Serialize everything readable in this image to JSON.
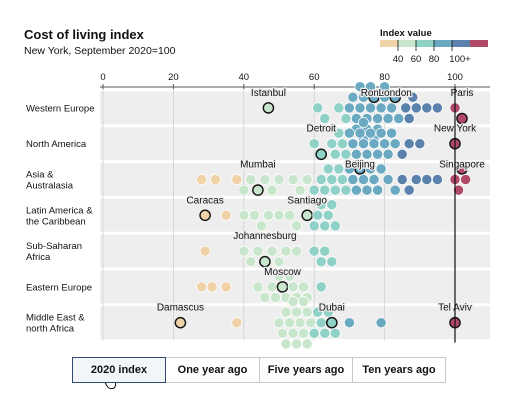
{
  "chart_data": {
    "type": "beeswarm",
    "title": "Cost of living index",
    "subtitle": "New York, September 2020=100",
    "xlim": [
      0,
      110
    ],
    "x_ticks": [
      0,
      20,
      40,
      60,
      80,
      100
    ],
    "reference_line": 100,
    "legend": {
      "title": "Index value",
      "ticks": [
        "40",
        "60",
        "80",
        "100+"
      ],
      "colors": [
        "#f0d2a8",
        "#c8e6cb",
        "#8fd0c7",
        "#6aa9c1",
        "#5a82ad",
        "#b04a68"
      ],
      "placement": "top-right"
    },
    "rows": [
      {
        "name": "Western Europe",
        "labels": [
          {
            "city": "Istanbul",
            "value": 47
          },
          {
            "city": "Rome",
            "value": 77
          },
          {
            "city": "London",
            "value": 83
          },
          {
            "city": "Paris",
            "value": 102
          }
        ],
        "points": [
          47,
          61,
          63,
          67,
          69,
          70,
          71,
          72,
          72,
          73,
          73,
          74,
          74,
          75,
          75,
          76,
          76,
          77,
          77,
          78,
          78,
          79,
          80,
          80,
          81,
          82,
          83,
          84,
          86,
          87,
          88,
          89,
          92,
          95,
          100,
          102
        ]
      },
      {
        "name": "North America",
        "labels": [
          {
            "city": "Detroit",
            "value": 62
          },
          {
            "city": "New York",
            "value": 100
          }
        ],
        "points": [
          60,
          62,
          65,
          66,
          67,
          68,
          69,
          70,
          71,
          72,
          72,
          73,
          74,
          74,
          75,
          76,
          77,
          78,
          79,
          80,
          81,
          82,
          83,
          85,
          87,
          90,
          100
        ]
      },
      {
        "name": "Asia & Australasia",
        "labels": [
          {
            "city": "Mumbai",
            "value": 44
          },
          {
            "city": "Beijing",
            "value": 73
          },
          {
            "city": "Singapore",
            "value": 102
          }
        ],
        "points": [
          28,
          32,
          38,
          40,
          42,
          44,
          46,
          48,
          50,
          54,
          56,
          58,
          60,
          62,
          63,
          64,
          65,
          66,
          67,
          68,
          69,
          70,
          71,
          72,
          73,
          74,
          75,
          76,
          77,
          78,
          79,
          81,
          83,
          85,
          87,
          89,
          92,
          95,
          100,
          101,
          102,
          103
        ]
      },
      {
        "name": "Latin America & the Caribbean",
        "labels": [
          {
            "city": "Caracas",
            "value": 29
          },
          {
            "city": "Santiago",
            "value": 58
          }
        ],
        "points": [
          29,
          35,
          40,
          43,
          45,
          47,
          50,
          53,
          55,
          58,
          60,
          61,
          62,
          63,
          64,
          65,
          66
        ]
      },
      {
        "name": "Sub-Saharan Africa",
        "labels": [
          {
            "city": "Johannesburg",
            "value": 46
          }
        ],
        "points": [
          29,
          40,
          42,
          44,
          46,
          48,
          50,
          52,
          55,
          60,
          62,
          63,
          65
        ]
      },
      {
        "name": "Eastern Europe",
        "labels": [
          {
            "city": "Moscow",
            "value": 51
          }
        ],
        "points": [
          28,
          31,
          35,
          44,
          46,
          48,
          49,
          50,
          51,
          52,
          53,
          54,
          55,
          57,
          58,
          62
        ]
      },
      {
        "name": "Middle East & north Africa",
        "labels": [
          {
            "city": "Damascus",
            "value": 22
          },
          {
            "city": "Dubai",
            "value": 65
          },
          {
            "city": "Tel Aviv",
            "value": 100
          }
        ],
        "points": [
          22,
          38,
          50,
          51,
          52,
          52,
          53,
          54,
          54,
          55,
          55,
          56,
          56,
          57,
          57,
          58,
          58,
          59,
          60,
          61,
          62,
          63,
          64,
          65,
          66,
          70,
          79,
          100
        ]
      }
    ]
  },
  "tabs": [
    {
      "label": "2020 index",
      "selected": true
    },
    {
      "label": "One year ago",
      "selected": false
    },
    {
      "label": "Five years ago",
      "selected": false
    },
    {
      "label": "Ten years ago",
      "selected": false
    }
  ]
}
